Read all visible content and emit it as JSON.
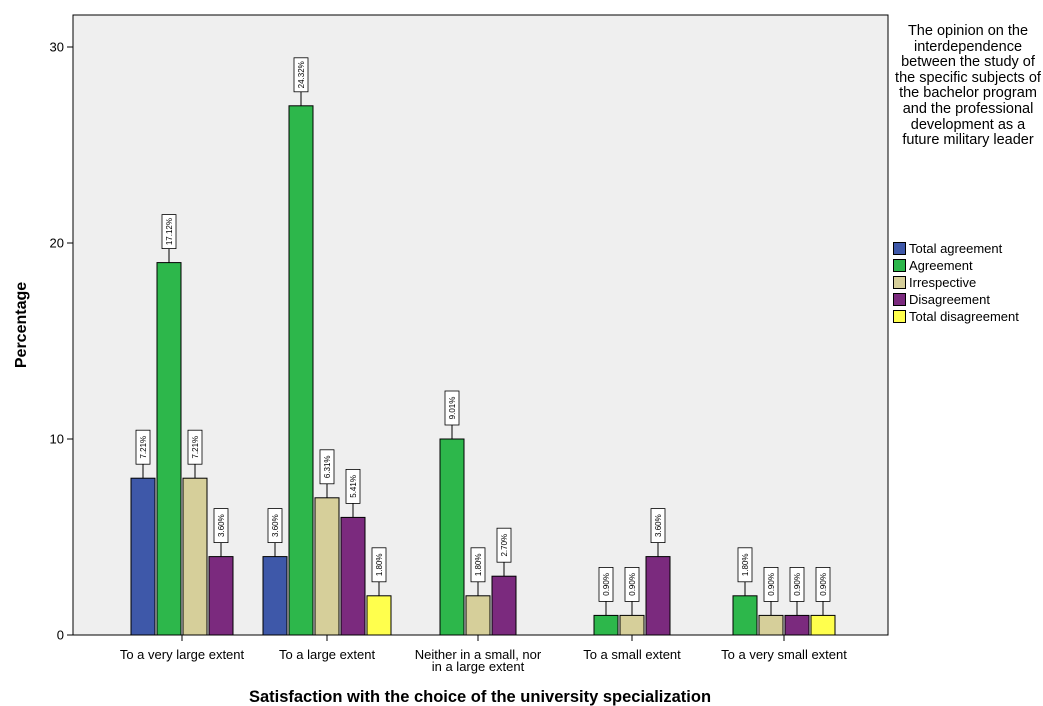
{
  "chart_data": {
    "type": "bar",
    "xlabel": "Satisfaction with the choice of the university specialization",
    "ylabel": "Percentage",
    "ylim": [
      0,
      31.5
    ],
    "yticks": [
      0,
      10,
      20,
      30
    ],
    "grid": false,
    "categories": [
      "To a very large extent",
      "To a large extent",
      "Neither in a small, nor in a large extent",
      "To a small extent",
      "To a very small extent"
    ],
    "legend": {
      "title": "The opinion on the interdependence between the study of the specific subjects of the bachelor program and the professional development as a future military leader",
      "position": "right"
    },
    "series": [
      {
        "name": "Total agreement",
        "color": "#3e58a9",
        "values": [
          8,
          4,
          null,
          null,
          null
        ],
        "labels": [
          "7.21%",
          "3.60%",
          null,
          null,
          null
        ]
      },
      {
        "name": "Agreement",
        "color": "#2db74b",
        "values": [
          19,
          27,
          10,
          1,
          2
        ],
        "labels": [
          "17.12%",
          "24.32%",
          "9.01%",
          "0.90%",
          "1.80%"
        ]
      },
      {
        "name": "Irrespective",
        "color": "#d6cf9a",
        "values": [
          8,
          7,
          2,
          1,
          1
        ],
        "labels": [
          "7.21%",
          "6.31%",
          "1.80%",
          "0.90%",
          "0.90%"
        ]
      },
      {
        "name": "Disagreement",
        "color": "#7b2a7e",
        "values": [
          4,
          6,
          3,
          4,
          1
        ],
        "labels": [
          "3.60%",
          "5.41%",
          "2.70%",
          "3.60%",
          "0.90%"
        ]
      },
      {
        "name": "Total disagreement",
        "color": "#ffff4d",
        "values": [
          null,
          2,
          null,
          null,
          1
        ],
        "labels": [
          null,
          "1.80%",
          null,
          null,
          "0.90%"
        ]
      }
    ]
  }
}
